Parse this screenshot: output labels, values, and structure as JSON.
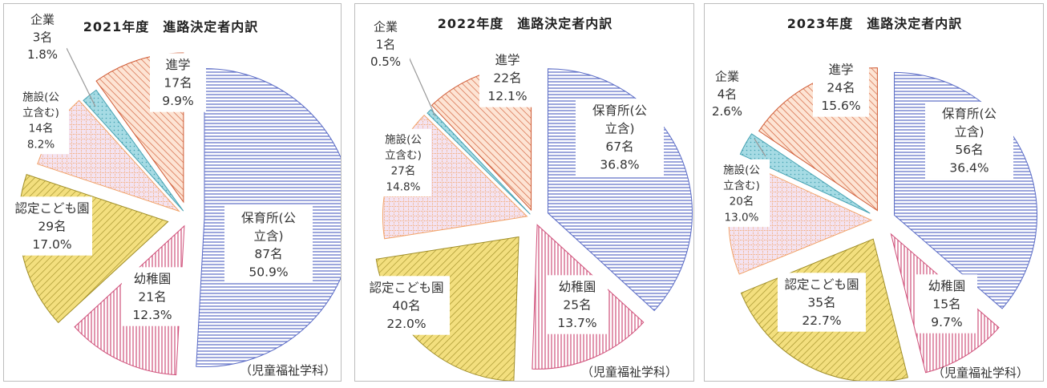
{
  "footer": "（児童福祉学科）",
  "colors": {
    "保育所": {
      "stroke": "#5b6cc6",
      "bg": "#ffffff"
    },
    "幼稚園": {
      "stroke": "#d0507a",
      "bg": "#ffffff"
    },
    "認定こども園": {
      "stroke": "#a08e28",
      "bg": "#f3df7e"
    },
    "施設": {
      "stroke": "#f2a36a",
      "bg": "#f4e3f1"
    },
    "企業": {
      "stroke": "#47a3b3",
      "bg": "#a6dbe4"
    },
    "進学": {
      "stroke": "#cf5a34",
      "bg": "#fde4d4"
    }
  },
  "chart_data": [
    {
      "type": "pie",
      "title": "2021年度　進路決定者内訳",
      "unit": "名",
      "slices": [
        {
          "key": "保育所",
          "label": [
            "保育所(公",
            "立含)"
          ],
          "count": 87,
          "percent": "50.9%"
        },
        {
          "key": "幼稚園",
          "label": [
            "幼稚園"
          ],
          "count": 21,
          "percent": "12.3%"
        },
        {
          "key": "認定こども園",
          "label": [
            "認定こども園"
          ],
          "count": 29,
          "percent": "17.0%"
        },
        {
          "key": "施設",
          "label": [
            "施設(公",
            "立含む)"
          ],
          "count": 14,
          "percent": "8.2%"
        },
        {
          "key": "企業",
          "label": [
            "企業"
          ],
          "count": 3,
          "percent": "1.8%"
        },
        {
          "key": "進学",
          "label": [
            "進学"
          ],
          "count": 17,
          "percent": "9.9%"
        }
      ]
    },
    {
      "type": "pie",
      "title": "2022年度　進路決定者内訳",
      "unit": "名",
      "slices": [
        {
          "key": "保育所",
          "label": [
            "保育所(公",
            "立含)"
          ],
          "count": 67,
          "percent": "36.8%"
        },
        {
          "key": "幼稚園",
          "label": [
            "幼稚園"
          ],
          "count": 25,
          "percent": "13.7%"
        },
        {
          "key": "認定こども園",
          "label": [
            "認定こども園"
          ],
          "count": 40,
          "percent": "22.0%"
        },
        {
          "key": "施設",
          "label": [
            "施設(公",
            "立含む)"
          ],
          "count": 27,
          "percent": "14.8%"
        },
        {
          "key": "企業",
          "label": [
            "企業"
          ],
          "count": 1,
          "percent": "0.5%"
        },
        {
          "key": "進学",
          "label": [
            "進学"
          ],
          "count": 22,
          "percent": "12.1%"
        }
      ]
    },
    {
      "type": "pie",
      "title": "2023年度　進路決定者内訳",
      "unit": "名",
      "slices": [
        {
          "key": "保育所",
          "label": [
            "保育所(公",
            "立含)"
          ],
          "count": 56,
          "percent": "36.4%"
        },
        {
          "key": "幼稚園",
          "label": [
            "幼稚園"
          ],
          "count": 15,
          "percent": "9.7%"
        },
        {
          "key": "認定こども園",
          "label": [
            "認定こども園"
          ],
          "count": 35,
          "percent": "22.7%"
        },
        {
          "key": "施設",
          "label": [
            "施設(公",
            "立含む)"
          ],
          "count": 20,
          "percent": "13.0%"
        },
        {
          "key": "企業",
          "label": [
            "企業"
          ],
          "count": 4,
          "percent": "2.6%"
        },
        {
          "key": "進学",
          "label": [
            "進学"
          ],
          "count": 24,
          "percent": "15.6%"
        }
      ]
    }
  ]
}
